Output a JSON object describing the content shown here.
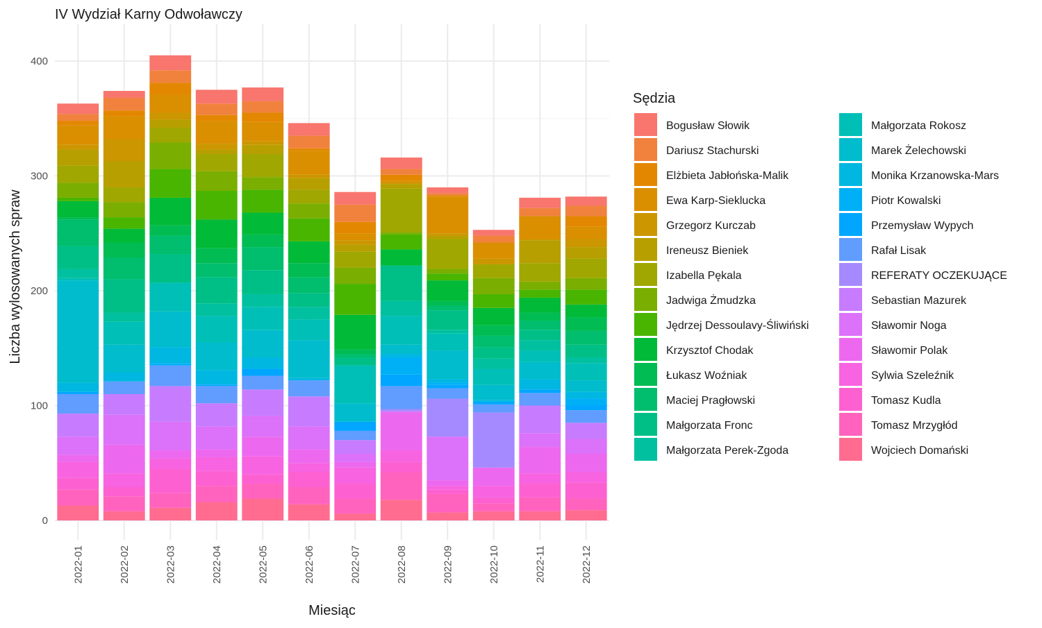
{
  "chart_data": {
    "type": "bar",
    "stacked": true,
    "title": "IV Wydział Karny Odwoławczy",
    "xlabel": "Miesiąc",
    "ylabel": "Liczba wylosowanych spraw",
    "ylim": [
      0,
      430
    ],
    "yticks": [
      0,
      100,
      200,
      300,
      400
    ],
    "grid": true,
    "legend_position": "right",
    "legend_title": "Sędzia",
    "categories": [
      "2022-01",
      "2022-02",
      "2022-03",
      "2022-04",
      "2022-05",
      "2022-06",
      "2022-07",
      "2022-08",
      "2022-09",
      "2022-10",
      "2022-11",
      "2022-12"
    ],
    "series": [
      {
        "name": "Bogusław Słowik",
        "color": "#F8766D",
        "values": [
          9,
          6,
          13,
          12,
          12,
          11,
          11,
          10,
          5,
          5,
          9,
          8
        ]
      },
      {
        "name": "Dariusz Stachurski",
        "color": "#F0823E",
        "values": [
          6,
          11,
          11,
          10,
          10,
          11,
          15,
          5,
          2,
          6,
          7,
          9
        ]
      },
      {
        "name": "Elżbieta Jabłońska-Malik",
        "color": "#E48700",
        "values": [
          4,
          5,
          10,
          5,
          8,
          2,
          10,
          5,
          1,
          0,
          0,
          9
        ]
      },
      {
        "name": "Ewa Karp-Sieklucka",
        "color": "#DA8F00",
        "values": [
          17,
          20,
          16,
          20,
          17,
          21,
          6,
          2,
          32,
          14,
          20,
          11
        ]
      },
      {
        "name": "Grzegorz Kurczab",
        "color": "#CB9600",
        "values": [
          4,
          19,
          6,
          5,
          3,
          3,
          4,
          1,
          2,
          5,
          1,
          7
        ]
      },
      {
        "name": "Ireneusz Bieniek",
        "color": "#B79F00",
        "values": [
          14,
          23,
          7,
          4,
          8,
          10,
          6,
          4,
          3,
          0,
          20,
          10
        ]
      },
      {
        "name": "Izabella Pękala",
        "color": "#9FA700",
        "values": [
          15,
          13,
          13,
          15,
          20,
          12,
          14,
          38,
          26,
          12,
          16,
          17
        ]
      },
      {
        "name": "Jadwiga Żmudzka",
        "color": "#7AAE00",
        "values": [
          13,
          13,
          23,
          17,
          11,
          13,
          14,
          2,
          4,
          14,
          7,
          10
        ]
      },
      {
        "name": "Jędrzej Dessoulavy-Śliwiński",
        "color": "#49B500",
        "values": [
          3,
          10,
          25,
          25,
          20,
          20,
          27,
          13,
          6,
          12,
          7,
          13
        ]
      },
      {
        "name": "Krzysztof Chodak",
        "color": "#00BA38",
        "values": [
          14,
          12,
          24,
          25,
          19,
          19,
          30,
          14,
          18,
          15,
          13,
          11
        ]
      },
      {
        "name": "Łukasz Woźniak",
        "color": "#00BC52",
        "values": [
          2,
          13,
          9,
          13,
          11,
          12,
          4,
          0,
          4,
          9,
          7,
          12
        ]
      },
      {
        "name": "Maciej Pragłowski",
        "color": "#00BE6D",
        "values": [
          23,
          19,
          16,
          12,
          20,
          14,
          3,
          0,
          4,
          10,
          8,
          12
        ]
      },
      {
        "name": "Małgorzata Fronc",
        "color": "#00BF86",
        "values": [
          20,
          29,
          25,
          23,
          21,
          12,
          7,
          31,
          17,
          10,
          9,
          11
        ]
      },
      {
        "name": "Małgorzata Perek-Zgoda",
        "color": "#00C09F",
        "values": [
          8,
          8,
          0,
          11,
          11,
          11,
          0,
          13,
          3,
          9,
          9,
          5
        ]
      },
      {
        "name": "Małgorzata Rokosz",
        "color": "#00BFB6",
        "values": [
          2,
          20,
          25,
          23,
          20,
          18,
          33,
          25,
          15,
          14,
          10,
          15
        ]
      },
      {
        "name": "Marek Żelechowski",
        "color": "#00BCCC",
        "values": [
          89,
          24,
          31,
          24,
          24,
          33,
          16,
          8,
          25,
          13,
          15,
          10
        ]
      },
      {
        "name": "Monika Krzanowska-Mars",
        "color": "#00B7E1",
        "values": [
          8,
          8,
          14,
          12,
          10,
          2,
          0,
          3,
          3,
          2,
          9,
          6
        ]
      },
      {
        "name": "Piotr Kowalski",
        "color": "#00B0F6",
        "values": [
          0,
          0,
          2,
          1,
          0,
          0,
          0,
          15,
          2,
          0,
          0,
          6
        ]
      },
      {
        "name": "Przemysław Wypych",
        "color": "#00A6FF",
        "values": [
          2,
          0,
          0,
          1,
          6,
          0,
          8,
          10,
          3,
          2,
          3,
          4
        ]
      },
      {
        "name": "Rafał Lisak",
        "color": "#619CFF",
        "values": [
          17,
          11,
          18,
          15,
          12,
          14,
          8,
          20,
          9,
          7,
          11,
          11
        ]
      },
      {
        "name": "REFERATY OCZEKUJĄCE",
        "color": "#A58AFF",
        "values": [
          0,
          0,
          0,
          0,
          0,
          0,
          0,
          2,
          33,
          48,
          0,
          0
        ]
      },
      {
        "name": "Sebastian Mazurek",
        "color": "#C77CFF",
        "values": [
          20,
          18,
          31,
          20,
          23,
          26,
          12,
          0,
          0,
          0,
          24,
          14
        ]
      },
      {
        "name": "Sławomir Noga",
        "color": "#DC71FA",
        "values": [
          16,
          26,
          25,
          20,
          18,
          20,
          7,
          1,
          38,
          0,
          12,
          13
        ]
      },
      {
        "name": "Sławomir Polak",
        "color": "#EC69EF",
        "values": [
          6,
          25,
          7,
          7,
          17,
          12,
          5,
          33,
          5,
          16,
          23,
          16
        ]
      },
      {
        "name": "Sylwia Szeleźnik",
        "color": "#F763E0",
        "values": [
          14,
          12,
          9,
          12,
          16,
          8,
          14,
          10,
          3,
          10,
          9,
          9
        ]
      },
      {
        "name": "Tomasz Kudla",
        "color": "#FD61D1",
        "values": [
          10,
          8,
          21,
          13,
          8,
          13,
          13,
          9,
          4,
          5,
          12,
          14
        ]
      },
      {
        "name": "Tomasz Mrzygłód",
        "color": "#FF63BE",
        "values": [
          14,
          13,
          13,
          14,
          13,
          15,
          13,
          24,
          16,
          7,
          12,
          10
        ]
      },
      {
        "name": "Wojciech Domański",
        "color": "#FF6C90",
        "values": [
          13,
          8,
          11,
          16,
          19,
          14,
          6,
          18,
          7,
          8,
          8,
          9
        ]
      }
    ]
  }
}
